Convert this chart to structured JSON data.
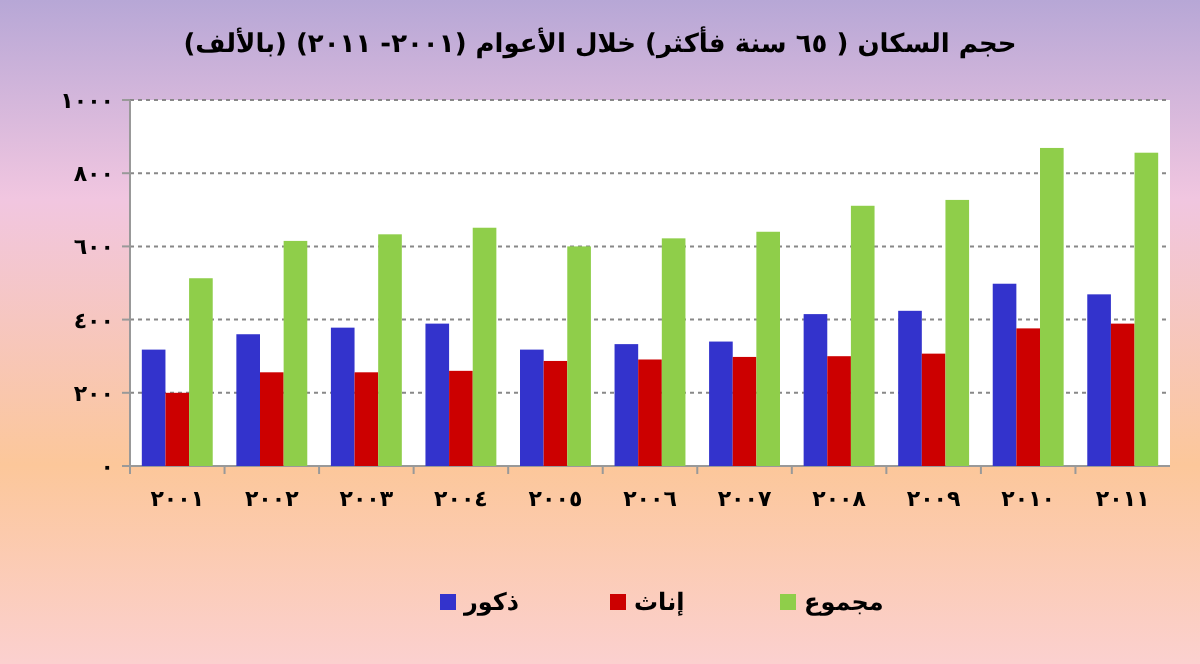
{
  "chart_data": {
    "type": "bar",
    "title": "حجم السكان ( ٦٥ سنة فأكثر) خلال الأعوام (٢٠٠١- ٢٠١١) (بالألف)",
    "categories": [
      "٢٠٠١",
      "٢٠٠٢",
      "٢٠٠٣",
      "٢٠٠٤",
      "٢٠٠٥",
      "٢٠٠٦",
      "٢٠٠٧",
      "٢٠٠٨",
      "٢٠٠٩",
      "٢٠١٠",
      "٢٠١١"
    ],
    "series": [
      {
        "name": "ذكور",
        "color": "#3333cc",
        "values": [
          318,
          360,
          378,
          389,
          318,
          333,
          340,
          415,
          424,
          498,
          469
        ]
      },
      {
        "name": "إناث",
        "color": "#cc0000",
        "values": [
          200,
          256,
          256,
          260,
          287,
          291,
          298,
          300,
          307,
          376,
          389
        ]
      },
      {
        "name": "مجموع",
        "color": "#8fce4a",
        "values": [
          513,
          615,
          633,
          651,
          600,
          622,
          640,
          711,
          727,
          869,
          856
        ]
      }
    ],
    "ylim": [
      0,
      1000
    ],
    "yticks": [
      {
        "value": 0,
        "label": "٠"
      },
      {
        "value": 200,
        "label": "٢٠٠"
      },
      {
        "value": 400,
        "label": "٤٠٠"
      },
      {
        "value": 600,
        "label": "٦٠٠"
      },
      {
        "value": 800,
        "label": "٨٠٠"
      },
      {
        "value": 1000,
        "label": "١٠٠٠"
      }
    ],
    "grid": "y",
    "legend": "bottom"
  }
}
